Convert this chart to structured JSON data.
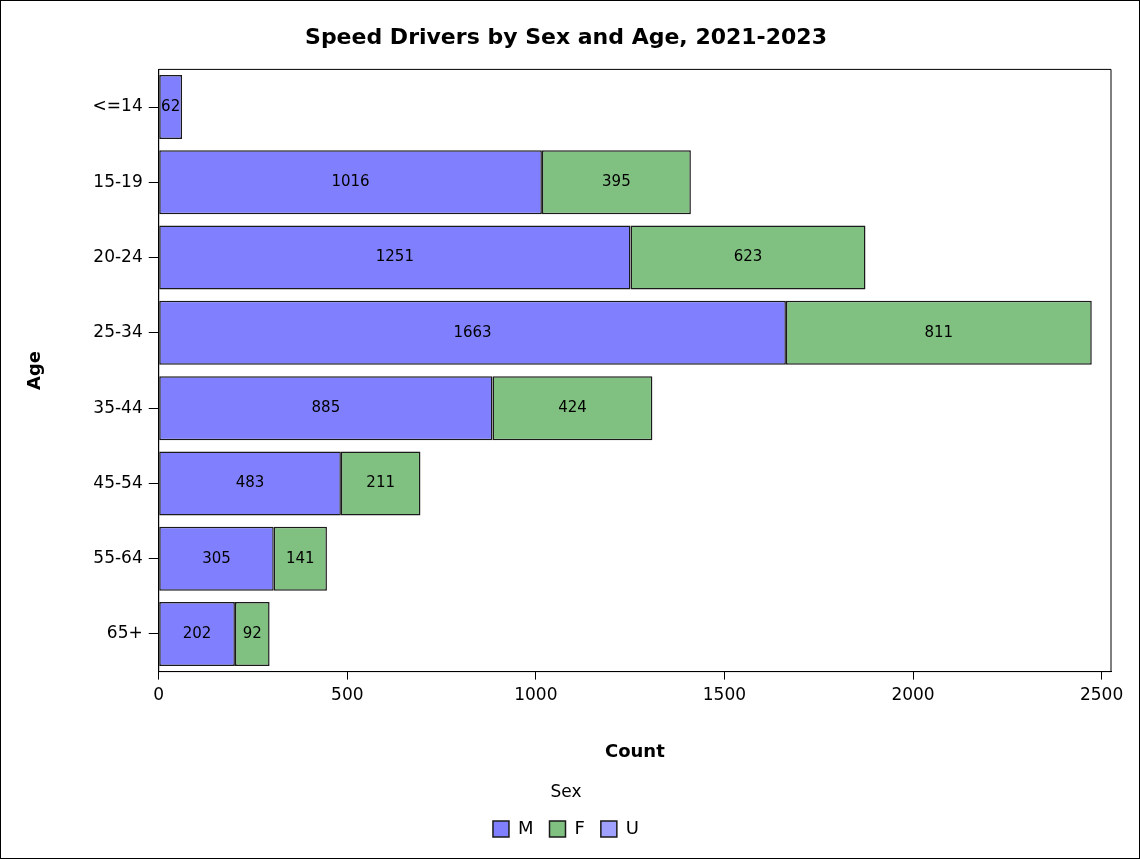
{
  "chart_data": {
    "type": "bar",
    "orientation": "horizontal",
    "stacked": true,
    "title": "Speed Drivers by Sex and Age, 2021-2023",
    "xlabel": "Count",
    "ylabel": "Age",
    "legend_title": "Sex",
    "categories": [
      "<=14",
      "15-19",
      "20-24",
      "25-34",
      "35-44",
      "45-54",
      "55-64",
      "65+"
    ],
    "series": [
      {
        "name": "M",
        "color": "#8080ff",
        "values": [
          62,
          1016,
          1251,
          1663,
          885,
          483,
          305,
          202
        ]
      },
      {
        "name": "F",
        "color": "#80c080",
        "values": [
          null,
          395,
          623,
          811,
          424,
          211,
          141,
          92
        ]
      },
      {
        "name": "U",
        "color": "#a0a0ff",
        "values": [
          null,
          null,
          null,
          null,
          null,
          null,
          null,
          null
        ]
      }
    ],
    "xlim": [
      0,
      2525
    ],
    "xticks": [
      0,
      500,
      1000,
      1500,
      2000,
      2500
    ],
    "grid": false,
    "legend": "bottom",
    "data_labels": true
  }
}
